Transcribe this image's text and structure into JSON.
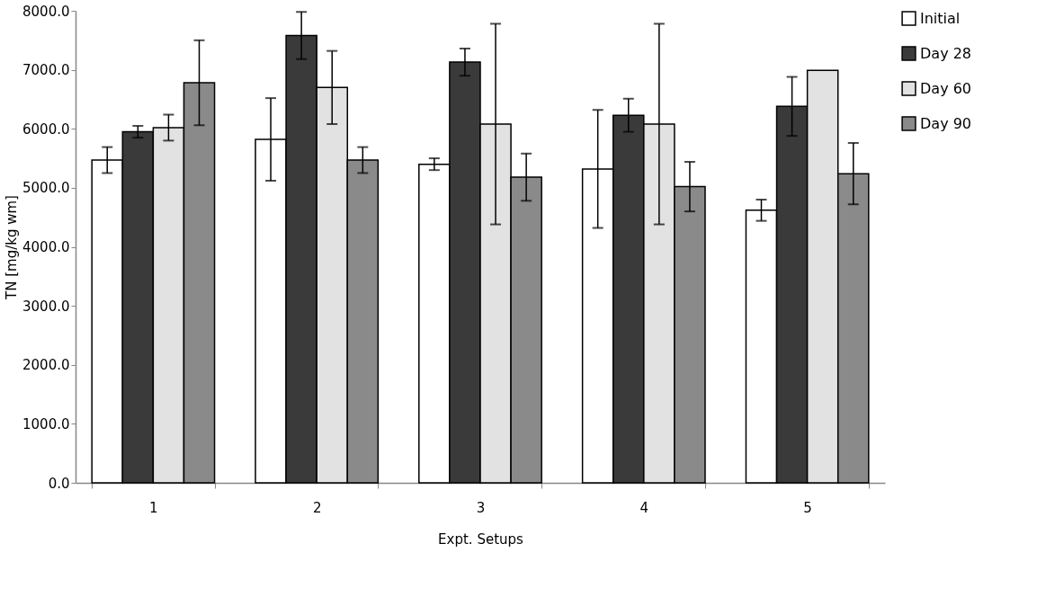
{
  "chart_data": {
    "type": "bar",
    "xlabel": "Expt. Setups",
    "ylabel": "TN [mg/kg  wm]",
    "categories": [
      "1",
      "2",
      "3",
      "4",
      "5"
    ],
    "series": [
      {
        "name": "Initial",
        "color": "#ffffff",
        "values": [
          5470,
          5820,
          5400,
          5320,
          4620
        ],
        "errors": [
          220,
          700,
          100,
          1000,
          180
        ]
      },
      {
        "name": "Day 28",
        "color": "#3a3a3a",
        "values": [
          5950,
          7580,
          7130,
          6230,
          6380
        ],
        "errors": [
          100,
          400,
          230,
          280,
          500
        ]
      },
      {
        "name": "Day 60",
        "color": "#e2e2e2",
        "values": [
          6020,
          6700,
          6080,
          6080,
          6990
        ],
        "errors": [
          220,
          620,
          1700,
          1700,
          null
        ]
      },
      {
        "name": "Day 90",
        "color": "#8a8a8a",
        "values": [
          6780,
          5470,
          5180,
          5020,
          5240
        ],
        "errors": [
          720,
          220,
          400,
          420,
          520
        ]
      }
    ],
    "ylim": [
      0,
      8000
    ],
    "yticks": [
      {
        "value": 0,
        "label": "0.0"
      },
      {
        "value": 1000,
        "label": "1000.0"
      },
      {
        "value": 2000,
        "label": "2000.0"
      },
      {
        "value": 3000,
        "label": "3000.0"
      },
      {
        "value": 4000,
        "label": "4000.0"
      },
      {
        "value": 5000,
        "label": "5000.0"
      },
      {
        "value": 6000,
        "label": "6000.0"
      },
      {
        "value": 7000,
        "label": "7000.0"
      },
      {
        "value": 8000,
        "label": "8000.0"
      }
    ],
    "grid": false,
    "legend": "right"
  }
}
